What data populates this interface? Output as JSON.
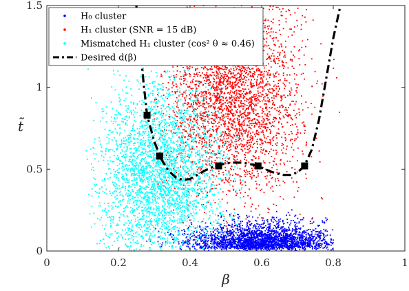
{
  "chart_data": {
    "type": "scatter",
    "xlabel": "β",
    "ylabel": "t̃",
    "xlim": [
      0,
      1
    ],
    "ylim": [
      0,
      1.5
    ],
    "x_ticks": [
      0,
      0.2,
      0.4,
      0.6,
      0.8,
      1
    ],
    "y_ticks": [
      0,
      0.5,
      1,
      1.5
    ],
    "x_tick_labels": [
      "0",
      "0.2",
      "0.4",
      "0.6",
      "0.8",
      "1"
    ],
    "y_tick_labels": [
      "0",
      "0.5",
      "1",
      "1.5"
    ],
    "grid": false,
    "legend_position": "top-left",
    "series": [
      {
        "name": "H0 cluster",
        "legend_label": "H₀ cluster",
        "color": "#0000ff",
        "marker": "dot",
        "distribution": {
          "x_range": [
            0.27,
            0.8
          ],
          "x_center": 0.6,
          "y_range": [
            0,
            0.35
          ],
          "mode_y": 0.0
        }
      },
      {
        "name": "H1 cluster (SNR = 15 dB)",
        "legend_label": "H₁ cluster (SNR = 15 dB)",
        "color": "#ff0000",
        "marker": "dot",
        "distribution": {
          "x_range": [
            0.3,
            0.82
          ],
          "x_center": 0.52,
          "y_range": [
            0.15,
            1.5
          ],
          "center_y": 0.95
        }
      },
      {
        "name": "Mismatched H1 cluster (cos² θ ≈ 0.46)",
        "legend_label": "Mismatched H₁ cluster (cos² θ ≈ 0.46)",
        "color": "#00ffff",
        "marker": "dot",
        "distribution": {
          "x_range": [
            0.11,
            0.55
          ],
          "x_center": 0.32,
          "y_range": [
            0,
            1.5
          ],
          "center_y": 0.45
        }
      },
      {
        "name": "Desired d(β)",
        "legend_label": "Desired d(β)",
        "color": "#000000",
        "line_style": "dash-dot",
        "x": [
          0.25,
          0.27,
          0.28,
          0.3,
          0.32,
          0.34,
          0.36,
          0.38,
          0.4,
          0.42,
          0.44,
          0.46,
          0.48,
          0.5,
          0.52,
          0.54,
          0.56,
          0.58,
          0.6,
          0.62,
          0.64,
          0.66,
          0.68,
          0.7,
          0.72,
          0.74,
          0.76,
          0.78,
          0.8,
          0.82
        ],
        "y": [
          1.5,
          1.03,
          0.83,
          0.67,
          0.56,
          0.49,
          0.45,
          0.435,
          0.44,
          0.465,
          0.49,
          0.51,
          0.525,
          0.535,
          0.54,
          0.54,
          0.535,
          0.525,
          0.51,
          0.49,
          0.475,
          0.465,
          0.465,
          0.48,
          0.52,
          0.62,
          0.8,
          1.05,
          1.3,
          1.5
        ]
      }
    ],
    "control_points": {
      "marker": "square",
      "color": "#000000",
      "x": [
        0.28,
        0.315,
        0.48,
        0.59,
        0.72
      ],
      "y": [
        0.83,
        0.58,
        0.52,
        0.52,
        0.52
      ]
    }
  }
}
